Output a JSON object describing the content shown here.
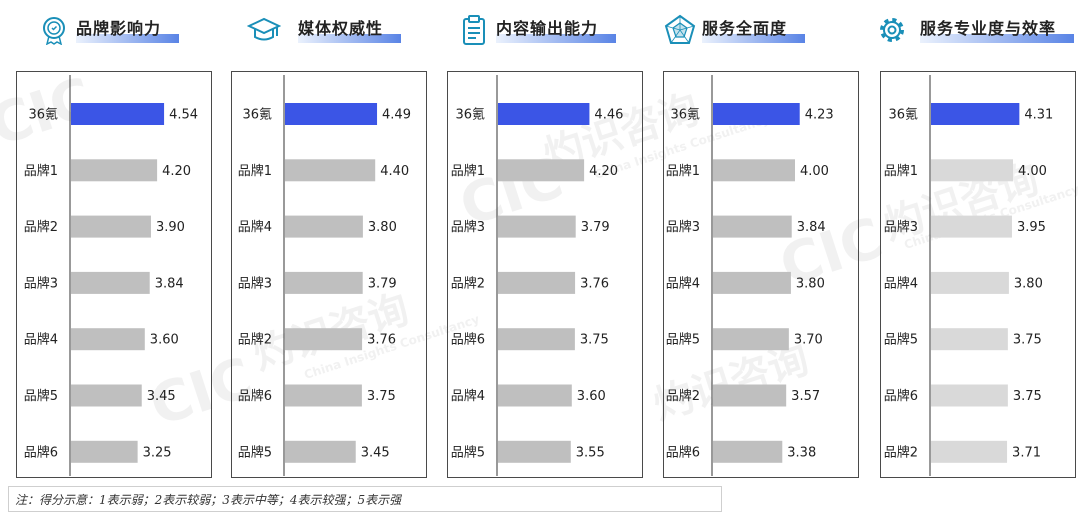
{
  "chart_data": [
    {
      "type": "bar",
      "title": "品牌影响力",
      "icon": "award-icon",
      "categories": [
        "36氪",
        "品牌1",
        "品牌2",
        "品牌3",
        "品牌4",
        "品牌5",
        "品牌6"
      ],
      "values": [
        4.54,
        4.2,
        3.9,
        3.84,
        3.6,
        3.45,
        3.25
      ],
      "value_labels": [
        "4.54",
        "4.20",
        "3.90",
        "3.84",
        "3.60",
        "3.45",
        "3.25"
      ],
      "highlight": "36氪",
      "orientation": "horizontal"
    },
    {
      "type": "bar",
      "title": "媒体权威性",
      "icon": "graduation-cap-icon",
      "categories": [
        "36氪",
        "品牌1",
        "品牌4",
        "品牌3",
        "品牌2",
        "品牌6",
        "品牌5"
      ],
      "values": [
        4.49,
        4.4,
        3.8,
        3.79,
        3.76,
        3.75,
        3.45
      ],
      "value_labels": [
        "4.49",
        "4.40",
        "3.80",
        "3.79",
        "3.76",
        "3.75",
        "3.45"
      ],
      "highlight": "36氪",
      "orientation": "horizontal"
    },
    {
      "type": "bar",
      "title": "内容输出能力",
      "icon": "clipboard-icon",
      "categories": [
        "36氪",
        "品牌1",
        "品牌3",
        "品牌2",
        "品牌6",
        "品牌4",
        "品牌5"
      ],
      "values": [
        4.46,
        4.2,
        3.79,
        3.76,
        3.75,
        3.6,
        3.55
      ],
      "value_labels": [
        "4.46",
        "4.20",
        "3.79",
        "3.76",
        "3.75",
        "3.60",
        "3.55"
      ],
      "highlight": "36氪",
      "orientation": "horizontal"
    },
    {
      "type": "bar",
      "title": "服务全面度",
      "icon": "pentagon-radar-icon",
      "categories": [
        "36氪",
        "品牌1",
        "品牌3",
        "品牌4",
        "品牌5",
        "品牌2",
        "品牌6"
      ],
      "values": [
        4.23,
        4.0,
        3.84,
        3.8,
        3.7,
        3.57,
        3.38
      ],
      "value_labels": [
        "4.23",
        "4.00",
        "3.84",
        "3.80",
        "3.70",
        "3.57",
        "3.38"
      ],
      "highlight": "36氪",
      "orientation": "horizontal"
    },
    {
      "type": "bar",
      "title": "服务专业度与效率",
      "icon": "gear-icon",
      "categories": [
        "36氪",
        "品牌1",
        "品牌3",
        "品牌4",
        "品牌5",
        "品牌6",
        "品牌2"
      ],
      "values": [
        4.31,
        4.0,
        3.95,
        3.8,
        3.75,
        3.75,
        3.71
      ],
      "value_labels": [
        "4.31",
        "4.00",
        "3.95",
        "3.80",
        "3.75",
        "3.75",
        "3.71"
      ],
      "highlight": "36氪",
      "orientation": "horizontal"
    }
  ],
  "colors": {
    "highlight_bar": "#3b55e6",
    "normal_bar": "#bfbfbf",
    "normal_bar_light": "#d9d9d9",
    "icon": "#1a8fb8",
    "axis": "#333333"
  },
  "note": "注：得分示意：1表示弱；2表示较弱；3表示中等；4表示较强；5表示强",
  "watermark": {
    "logo": "CIC",
    "cn": "灼识咨询",
    "en": "China Insights Consultancy"
  }
}
